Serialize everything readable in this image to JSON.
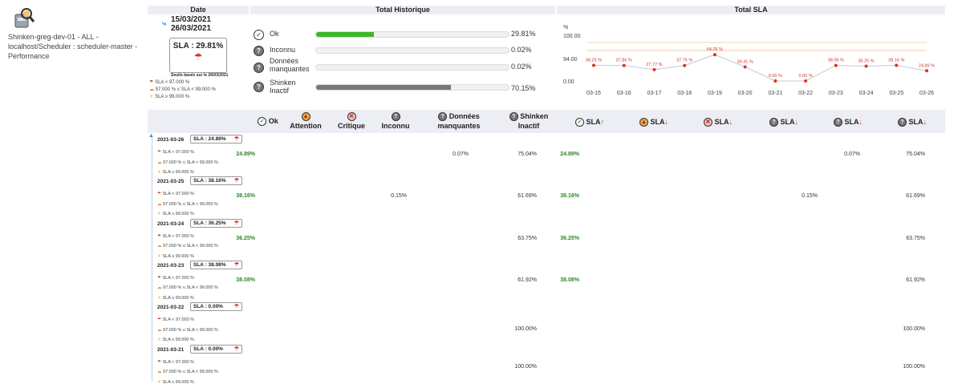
{
  "element": {
    "icon": "scheduler-robot-icon",
    "name": "Shinken-greg-dev-01 - ALL - localhost/Scheduler : scheduler-master - Performance"
  },
  "headers": {
    "date": "Date",
    "historique": "Total Historique",
    "sla": "Total SLA"
  },
  "period": {
    "start": "15/03/2021",
    "end": "26/03/2021"
  },
  "summary_sla": "SLA : 29.81%",
  "thresholds_date": "Seuils basés sur le 26/03/2021",
  "legend": {
    "red": "SLA < 97.000 %",
    "orange": "97.000 % ≤ SLA < 99.000 %",
    "sun": "SLA ≥ 99.000 %"
  },
  "historique": [
    {
      "label": "Ok",
      "pct": "29.81%",
      "value": 29.81,
      "color": "#3cb728",
      "icon": "ok-check-icon"
    },
    {
      "label": "Inconnu",
      "pct": "0.02%",
      "value": 0.02,
      "color": "#888888",
      "icon": "unknown-icon"
    },
    {
      "label": "Données manquantes",
      "pct": "0.02%",
      "value": 0.02,
      "color": "#888888",
      "icon": "missing-data-icon"
    },
    {
      "label": "Shinken Inactif",
      "pct": "70.15%",
      "value": 70.15,
      "color": "#777777",
      "icon": "inactive-icon"
    }
  ],
  "chart_data": {
    "type": "line",
    "ylabel": "%",
    "yticks": [
      "100.00",
      "94.00",
      "0.00"
    ],
    "categories": [
      "03-15",
      "03-16",
      "03-17",
      "03-18",
      "03-19",
      "03-20",
      "03-21",
      "03-22",
      "03-23",
      "03-24",
      "03-25",
      "03-26"
    ],
    "values": [
      38.25,
      37.86,
      27.77,
      37.75,
      64.26,
      34.41,
      0.0,
      0.0,
      38.08,
      36.25,
      38.16,
      24.89
    ],
    "labels": [
      "38.25 %",
      "37.86 %",
      "27.77 %",
      "37.75 %",
      "64.26 %",
      "34.41 %",
      "0.00 %",
      "0.00 %",
      "38.08 %",
      "36.25 %",
      "38.16 %",
      "24.89 %"
    ],
    "thresholds": [
      {
        "value": 99,
        "color": "#f3d9a8"
      },
      {
        "value": 97,
        "color": "#f5c9b0"
      }
    ],
    "line_color": "#c5c8cf",
    "point_color": "#d4352a"
  },
  "columns": {
    "ok": "Ok",
    "attention": "Attention",
    "critique": "Critique",
    "inconnu": "Inconnu",
    "donnees": "Données",
    "manquantes": "manquantes",
    "shinken": "Shinken",
    "inactif": "Inactif",
    "sla": "SLA"
  },
  "days": [
    {
      "date": "2021-03-26",
      "sla": "SLA : 24.89%",
      "ok": "24.89%",
      "unknown": "",
      "missing": "0.07%",
      "inactive": "75.04%",
      "sla_ok": "24.89%",
      "sla_unknown": "",
      "sla_missing": "0.07%",
      "sla_inactive": "75.04%"
    },
    {
      "date": "2021-03-25",
      "sla": "SLA : 38.16%",
      "ok": "38.16%",
      "unknown": "0.15%",
      "missing": "",
      "inactive": "61.69%",
      "sla_ok": "38.16%",
      "sla_unknown": "0.15%",
      "sla_missing": "",
      "sla_inactive": "61.69%"
    },
    {
      "date": "2021-03-24",
      "sla": "SLA : 36.25%",
      "ok": "36.25%",
      "unknown": "",
      "missing": "",
      "inactive": "63.75%",
      "sla_ok": "36.25%",
      "sla_unknown": "",
      "sla_missing": "",
      "sla_inactive": "63.75%"
    },
    {
      "date": "2021-03-23",
      "sla": "SLA : 38.08%",
      "ok": "38.08%",
      "unknown": "",
      "missing": "",
      "inactive": "61.92%",
      "sla_ok": "38.08%",
      "sla_unknown": "",
      "sla_missing": "",
      "sla_inactive": "61.92%"
    },
    {
      "date": "2021-03-22",
      "sla": "SLA : 0.00%",
      "ok": "",
      "unknown": "",
      "missing": "",
      "inactive": "100.00%",
      "sla_ok": "",
      "sla_unknown": "",
      "sla_missing": "",
      "sla_inactive": "100.00%"
    },
    {
      "date": "2021-03-21",
      "sla": "SLA : 0.00%",
      "ok": "",
      "unknown": "",
      "missing": "",
      "inactive": "100.00%",
      "sla_ok": "",
      "sla_unknown": "",
      "sla_missing": "",
      "sla_inactive": "100.00%"
    }
  ]
}
